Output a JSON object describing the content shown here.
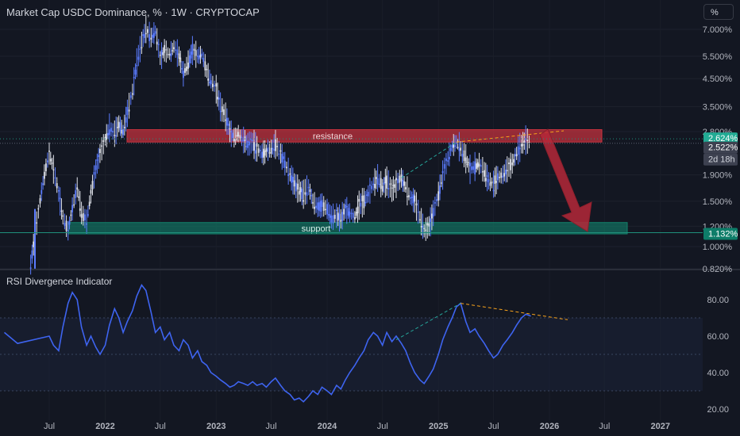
{
  "header": {
    "title": "Market Cap USDC Dominance, % · 1W · CRYPTOCAP",
    "unit_button": "%"
  },
  "rsi_panel": {
    "title": "RSI Divergence Indicator"
  },
  "colors": {
    "background": "#131722",
    "price_line": "#2962ff",
    "rsi_line": "#3e64f0",
    "resistance_zone": "#c8323f",
    "support_zone": "#12806a",
    "arrow": "#b52838",
    "divergence_up": "#26a69a",
    "divergence_down": "#f7a21b",
    "current_tag": "#3d4150",
    "support_tag": "#0e7d69",
    "resistance_tag": "#22ab94"
  },
  "chart_data": [
    {
      "type": "candlestick",
      "title": "Market Cap USDC Dominance, % · 1W · CRYPTOCAP",
      "y_scale": "log",
      "y_ticks": [
        "7.000%",
        "5.500%",
        "4.500%",
        "3.500%",
        "2.800%",
        "1.900%",
        "1.500%",
        "1.200%",
        "1.000%",
        "0.820%"
      ],
      "x_ticks": [
        "Jul",
        "2022",
        "Jul",
        "2023",
        "Jul",
        "2024",
        "Jul",
        "2025",
        "Jul",
        "2026",
        "Jul",
        "2027"
      ],
      "series": [
        {
          "values": [
            [
              "2021-05-01",
              0.85
            ],
            [
              "2021-05-15",
              1.1
            ],
            [
              "2021-06-01",
              1.5
            ],
            [
              "2021-06-15",
              1.9
            ],
            [
              "2021-07-01",
              2.3
            ],
            [
              "2021-07-15",
              2.0
            ],
            [
              "2021-08-01",
              1.6
            ],
            [
              "2021-08-15",
              1.3
            ],
            [
              "2021-09-01",
              1.15
            ],
            [
              "2021-09-15",
              1.4
            ],
            [
              "2021-10-01",
              1.7
            ],
            [
              "2021-10-15",
              1.35
            ],
            [
              "2021-11-01",
              1.25
            ],
            [
              "2021-11-15",
              1.6
            ],
            [
              "2021-12-01",
              2.0
            ],
            [
              "2021-12-15",
              2.3
            ],
            [
              "2022-01-01",
              2.6
            ],
            [
              "2022-01-15",
              2.9
            ],
            [
              "2022-02-01",
              2.75
            ],
            [
              "2022-02-15",
              3.0
            ],
            [
              "2022-03-01",
              2.8
            ],
            [
              "2022-03-15",
              3.3
            ],
            [
              "2022-04-01",
              4.0
            ],
            [
              "2022-04-15",
              5.2
            ],
            [
              "2022-05-01",
              6.2
            ],
            [
              "2022-05-15",
              7.0
            ],
            [
              "2022-06-01",
              6.5
            ],
            [
              "2022-06-15",
              6.9
            ],
            [
              "2022-07-01",
              5.4
            ],
            [
              "2022-07-15",
              5.8
            ],
            [
              "2022-08-01",
              5.6
            ],
            [
              "2022-08-15",
              6.0
            ],
            [
              "2022-09-01",
              5.5
            ],
            [
              "2022-09-15",
              4.7
            ],
            [
              "2022-10-01",
              5.2
            ],
            [
              "2022-10-15",
              5.8
            ],
            [
              "2022-11-01",
              5.5
            ],
            [
              "2022-11-15",
              5.6
            ],
            [
              "2022-12-01",
              4.8
            ],
            [
              "2022-12-15",
              4.4
            ],
            [
              "2023-01-01",
              4.1
            ],
            [
              "2023-01-15",
              3.5
            ],
            [
              "2023-02-01",
              3.2
            ],
            [
              "2023-02-15",
              2.8
            ],
            [
              "2023-03-01",
              2.65
            ],
            [
              "2023-03-15",
              2.75
            ],
            [
              "2023-04-01",
              2.6
            ],
            [
              "2023-04-15",
              2.5
            ],
            [
              "2023-05-01",
              2.55
            ],
            [
              "2023-05-15",
              2.4
            ],
            [
              "2023-06-01",
              2.3
            ],
            [
              "2023-06-15",
              2.35
            ],
            [
              "2023-07-01",
              2.4
            ],
            [
              "2023-07-15",
              2.5
            ],
            [
              "2023-08-01",
              2.3
            ],
            [
              "2023-08-15",
              2.1
            ],
            [
              "2023-09-01",
              1.9
            ],
            [
              "2023-09-15",
              1.75
            ],
            [
              "2023-10-01",
              1.65
            ],
            [
              "2023-10-15",
              1.6
            ],
            [
              "2023-11-01",
              1.7
            ],
            [
              "2023-11-15",
              1.5
            ],
            [
              "2023-12-01",
              1.42
            ],
            [
              "2023-12-15",
              1.45
            ],
            [
              "2024-01-01",
              1.4
            ],
            [
              "2024-01-15",
              1.3
            ],
            [
              "2024-02-01",
              1.32
            ],
            [
              "2024-02-15",
              1.28
            ],
            [
              "2024-03-01",
              1.4
            ],
            [
              "2024-03-15",
              1.35
            ],
            [
              "2024-04-01",
              1.3
            ],
            [
              "2024-04-15",
              1.45
            ],
            [
              "2024-05-01",
              1.5
            ],
            [
              "2024-05-15",
              1.6
            ],
            [
              "2024-06-01",
              1.75
            ],
            [
              "2024-06-15",
              1.85
            ],
            [
              "2024-07-01",
              1.7
            ],
            [
              "2024-07-15",
              1.8
            ],
            [
              "2024-08-01",
              1.65
            ],
            [
              "2024-08-15",
              1.75
            ],
            [
              "2024-09-01",
              1.85
            ],
            [
              "2024-09-15",
              1.7
            ],
            [
              "2024-10-01",
              1.55
            ],
            [
              "2024-10-15",
              1.5
            ],
            [
              "2024-11-01",
              1.3
            ],
            [
              "2024-11-15",
              1.15
            ],
            [
              "2024-12-01",
              1.2
            ],
            [
              "2024-12-15",
              1.35
            ],
            [
              "2025-01-01",
              1.6
            ],
            [
              "2025-01-15",
              1.9
            ],
            [
              "2025-02-01",
              2.2
            ],
            [
              "2025-02-15",
              2.45
            ],
            [
              "2025-03-01",
              2.55
            ],
            [
              "2025-03-15",
              2.4
            ],
            [
              "2025-04-01",
              2.2
            ],
            [
              "2025-04-15",
              2.0
            ],
            [
              "2025-05-01",
              2.05
            ],
            [
              "2025-05-15",
              2.1
            ],
            [
              "2025-06-01",
              1.95
            ],
            [
              "2025-06-15",
              1.8
            ],
            [
              "2025-07-01",
              1.75
            ],
            [
              "2025-07-15",
              1.85
            ],
            [
              "2025-08-01",
              1.9
            ],
            [
              "2025-08-15",
              2.0
            ],
            [
              "2025-09-01",
              2.1
            ],
            [
              "2025-09-15",
              2.3
            ],
            [
              "2025-10-01",
              2.5
            ],
            [
              "2025-10-15",
              2.6
            ],
            [
              "2025-11-01",
              2.522
            ]
          ]
        }
      ],
      "zones": [
        {
          "label": "resistance",
          "from": 2.55,
          "to": 2.85
        },
        {
          "label": "support",
          "from": 1.12,
          "to": 1.24
        }
      ],
      "price_tags": [
        "2.624%",
        "2.522%",
        "2d 18h",
        "1.132%"
      ]
    },
    {
      "type": "line",
      "title": "RSI Divergence Indicator",
      "y_ticks": [
        "80.00",
        "60.00",
        "40.00",
        "20.00"
      ],
      "series": [
        {
          "values": [
            [
              "2021-05-01",
              62
            ],
            [
              "2021-06-01",
              56
            ],
            [
              "2021-07-01",
              60
            ],
            [
              "2021-07-15",
              55
            ],
            [
              "2021-08-01",
              52
            ],
            [
              "2021-08-15",
              65
            ],
            [
              "2021-09-01",
              78
            ],
            [
              "2021-09-15",
              84
            ],
            [
              "2021-10-01",
              80
            ],
            [
              "2021-10-15",
              65
            ],
            [
              "2021-11-01",
              55
            ],
            [
              "2021-11-15",
              60
            ],
            [
              "2021-12-01",
              54
            ],
            [
              "2021-12-15",
              50
            ],
            [
              "2022-01-01",
              55
            ],
            [
              "2022-01-15",
              66
            ],
            [
              "2022-02-01",
              75
            ],
            [
              "2022-02-15",
              70
            ],
            [
              "2022-03-01",
              62
            ],
            [
              "2022-03-15",
              68
            ],
            [
              "2022-04-01",
              74
            ],
            [
              "2022-04-15",
              82
            ],
            [
              "2022-05-01",
              88
            ],
            [
              "2022-05-15",
              85
            ],
            [
              "2022-06-01",
              73
            ],
            [
              "2022-06-15",
              62
            ],
            [
              "2022-07-01",
              65
            ],
            [
              "2022-07-15",
              58
            ],
            [
              "2022-08-01",
              62
            ],
            [
              "2022-08-15",
              55
            ],
            [
              "2022-09-01",
              52
            ],
            [
              "2022-09-15",
              58
            ],
            [
              "2022-10-01",
              55
            ],
            [
              "2022-10-15",
              48
            ],
            [
              "2022-11-01",
              52
            ],
            [
              "2022-11-15",
              46
            ],
            [
              "2022-12-01",
              44
            ],
            [
              "2022-12-15",
              40
            ],
            [
              "2023-01-01",
              38
            ],
            [
              "2023-01-15",
              36
            ],
            [
              "2023-02-01",
              34
            ],
            [
              "2023-02-15",
              32
            ],
            [
              "2023-03-01",
              33
            ],
            [
              "2023-03-15",
              35
            ],
            [
              "2023-04-01",
              34
            ],
            [
              "2023-04-15",
              33
            ],
            [
              "2023-05-01",
              35
            ],
            [
              "2023-05-15",
              33
            ],
            [
              "2023-06-01",
              34
            ],
            [
              "2023-06-15",
              32
            ],
            [
              "2023-07-01",
              35
            ],
            [
              "2023-07-15",
              37
            ],
            [
              "2023-08-01",
              33
            ],
            [
              "2023-08-15",
              30
            ],
            [
              "2023-09-01",
              28
            ],
            [
              "2023-09-15",
              25
            ],
            [
              "2023-10-01",
              26
            ],
            [
              "2023-10-15",
              24
            ],
            [
              "2023-11-01",
              27
            ],
            [
              "2023-11-15",
              30
            ],
            [
              "2023-12-01",
              28
            ],
            [
              "2023-12-15",
              32
            ],
            [
              "2024-01-01",
              30
            ],
            [
              "2024-01-15",
              28
            ],
            [
              "2024-02-01",
              33
            ],
            [
              "2024-02-15",
              31
            ],
            [
              "2024-03-01",
              36
            ],
            [
              "2024-03-15",
              40
            ],
            [
              "2024-04-01",
              44
            ],
            [
              "2024-04-15",
              48
            ],
            [
              "2024-05-01",
              52
            ],
            [
              "2024-05-15",
              58
            ],
            [
              "2024-06-01",
              62
            ],
            [
              "2024-06-15",
              60
            ],
            [
              "2024-07-01",
              55
            ],
            [
              "2024-07-15",
              62
            ],
            [
              "2024-08-01",
              57
            ],
            [
              "2024-08-15",
              60
            ],
            [
              "2024-09-01",
              56
            ],
            [
              "2024-09-15",
              52
            ],
            [
              "2024-10-01",
              45
            ],
            [
              "2024-10-15",
              40
            ],
            [
              "2024-11-01",
              36
            ],
            [
              "2024-11-15",
              34
            ],
            [
              "2024-12-01",
              38
            ],
            [
              "2024-12-15",
              42
            ],
            [
              "2025-01-01",
              50
            ],
            [
              "2025-01-15",
              58
            ],
            [
              "2025-02-01",
              65
            ],
            [
              "2025-02-15",
              70
            ],
            [
              "2025-03-01",
              76
            ],
            [
              "2025-03-15",
              78
            ],
            [
              "2025-04-01",
              68
            ],
            [
              "2025-04-15",
              62
            ],
            [
              "2025-05-01",
              64
            ],
            [
              "2025-05-15",
              60
            ],
            [
              "2025-06-01",
              56
            ],
            [
              "2025-06-15",
              52
            ],
            [
              "2025-07-01",
              48
            ],
            [
              "2025-07-15",
              50
            ],
            [
              "2025-08-01",
              55
            ],
            [
              "2025-08-15",
              58
            ],
            [
              "2025-09-01",
              62
            ],
            [
              "2025-09-15",
              66
            ],
            [
              "2025-10-01",
              70
            ],
            [
              "2025-10-15",
              72
            ],
            [
              "2025-11-01",
              71
            ]
          ]
        }
      ],
      "bands": [
        70,
        50,
        30
      ]
    }
  ]
}
